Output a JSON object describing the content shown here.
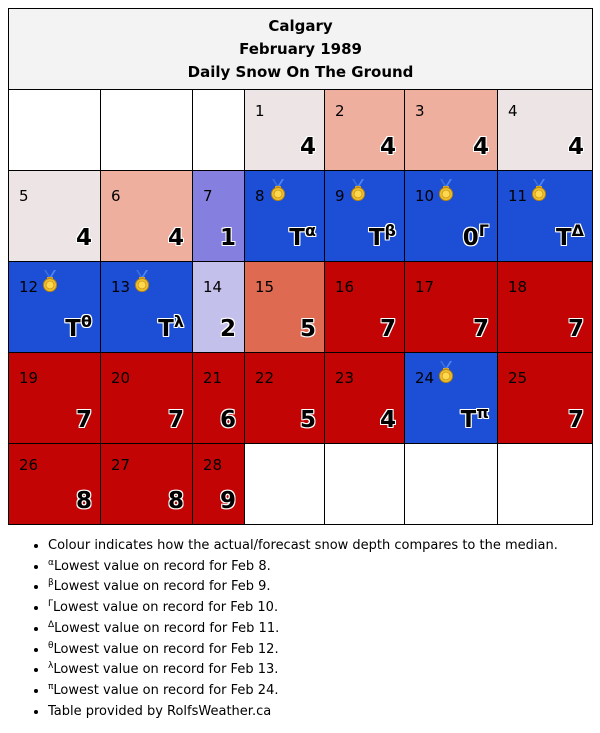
{
  "header": {
    "city": "Calgary",
    "month": "February 1989",
    "subtitle": "Daily Snow On The Ground"
  },
  "colors": {
    "near_median_low": "#ede5e5",
    "below_median": "#efaf9f",
    "above_median": "#8580e0",
    "slightly_above": "#c4c0ec",
    "record_low": "#1d4fd6",
    "much_below": "#de6a52",
    "far_below": "#c20404",
    "medal_icon": "gold"
  },
  "weeks": [
    [
      {
        "empty": true
      },
      {
        "empty": true
      },
      {
        "empty": true
      },
      {
        "day": "1",
        "value": "4",
        "color": "#ede5e5"
      },
      {
        "day": "2",
        "value": "4",
        "color": "#efaf9f"
      },
      {
        "day": "3",
        "value": "4",
        "color": "#efaf9f"
      },
      {
        "day": "4",
        "value": "4",
        "color": "#ede5e5"
      }
    ],
    [
      {
        "day": "5",
        "value": "4",
        "color": "#ede5e5"
      },
      {
        "day": "6",
        "value": "4",
        "color": "#efaf9f"
      },
      {
        "day": "7",
        "value": "1",
        "color": "#8580e0"
      },
      {
        "day": "8",
        "value": "T",
        "sup": "α",
        "color": "#1d4fd6",
        "medal": true
      },
      {
        "day": "9",
        "value": "T",
        "sup": "β",
        "color": "#1d4fd6",
        "medal": true
      },
      {
        "day": "10",
        "value": "0",
        "sup": "Γ",
        "color": "#1d4fd6",
        "medal": true
      },
      {
        "day": "11",
        "value": "T",
        "sup": "Δ",
        "color": "#1d4fd6",
        "medal": true
      }
    ],
    [
      {
        "day": "12",
        "value": "T",
        "sup": "θ",
        "color": "#1d4fd6",
        "medal": true
      },
      {
        "day": "13",
        "value": "T",
        "sup": "λ",
        "color": "#1d4fd6",
        "medal": true
      },
      {
        "day": "14",
        "value": "2",
        "color": "#c4c0ec"
      },
      {
        "day": "15",
        "value": "5",
        "color": "#de6a52"
      },
      {
        "day": "16",
        "value": "7",
        "color": "#c20404"
      },
      {
        "day": "17",
        "value": "7",
        "color": "#c20404"
      },
      {
        "day": "18",
        "value": "7",
        "color": "#c20404"
      }
    ],
    [
      {
        "day": "19",
        "value": "7",
        "color": "#c20404"
      },
      {
        "day": "20",
        "value": "7",
        "color": "#c20404"
      },
      {
        "day": "21",
        "value": "6",
        "color": "#c20404"
      },
      {
        "day": "22",
        "value": "5",
        "color": "#c20404"
      },
      {
        "day": "23",
        "value": "4",
        "color": "#c20404"
      },
      {
        "day": "24",
        "value": "T",
        "sup": "π",
        "color": "#1d4fd6",
        "medal": true
      },
      {
        "day": "25",
        "value": "7",
        "color": "#c20404"
      }
    ],
    [
      {
        "day": "26",
        "value": "8",
        "color": "#c20404"
      },
      {
        "day": "27",
        "value": "8",
        "color": "#c20404"
      },
      {
        "day": "28",
        "value": "9",
        "color": "#c20404"
      },
      {
        "empty": true
      },
      {
        "empty": true
      },
      {
        "empty": true
      },
      {
        "empty": true
      }
    ]
  ],
  "notes": [
    {
      "sup": "",
      "text": "Colour indicates how the actual/forecast snow depth compares to the median."
    },
    {
      "sup": "α",
      "text": "Lowest value on record for Feb 8."
    },
    {
      "sup": "β",
      "text": "Lowest value on record for Feb 9."
    },
    {
      "sup": "Γ",
      "text": "Lowest value on record for Feb 10."
    },
    {
      "sup": "Δ",
      "text": "Lowest value on record for Feb 11."
    },
    {
      "sup": "θ",
      "text": "Lowest value on record for Feb 12."
    },
    {
      "sup": "λ",
      "text": "Lowest value on record for Feb 13."
    },
    {
      "sup": "π",
      "text": "Lowest value on record for Feb 24."
    },
    {
      "sup": "",
      "text": "Table provided by RolfsWeather.ca"
    }
  ]
}
